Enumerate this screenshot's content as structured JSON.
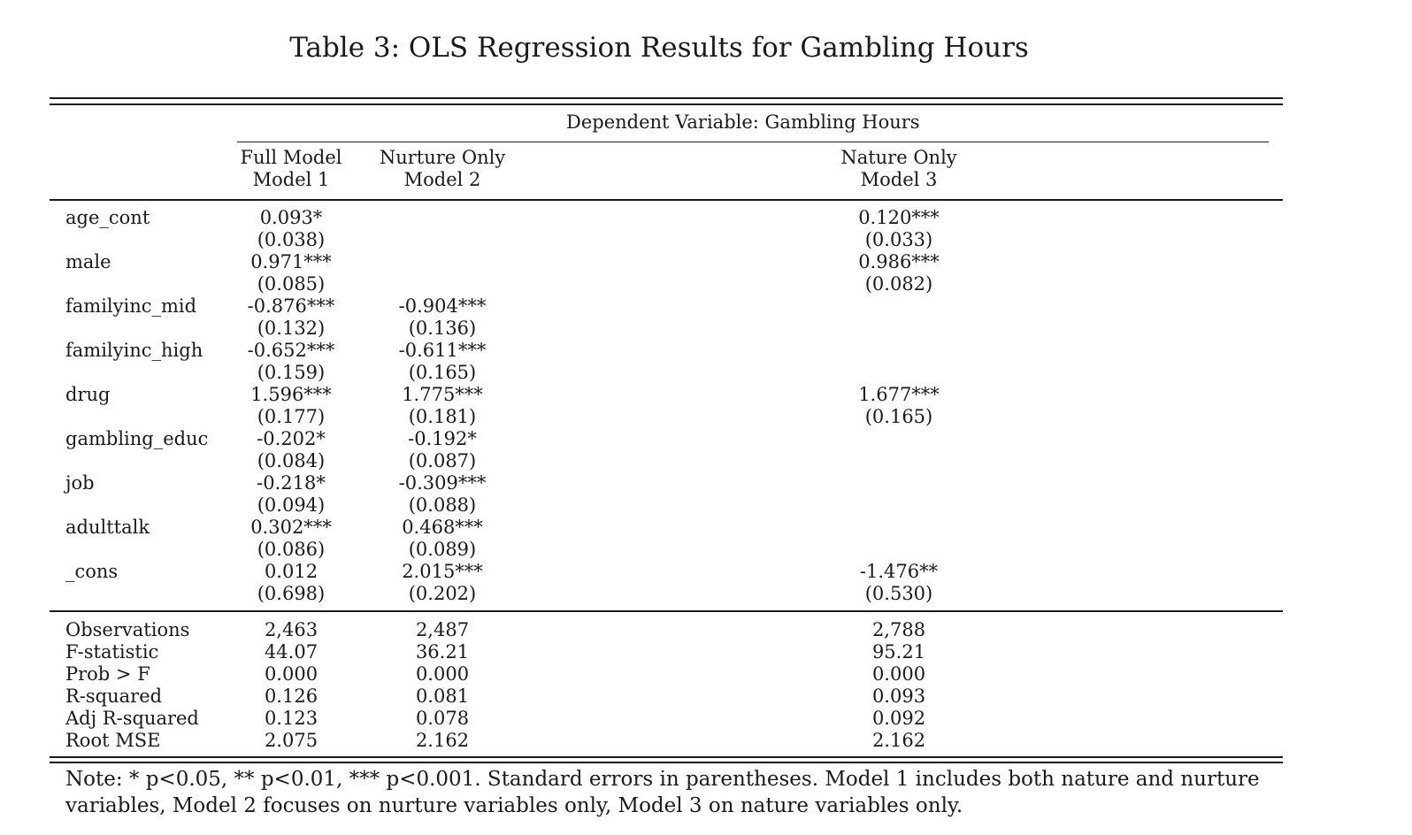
{
  "title": "Table 3: OLS Regression Results for Gambling Hours",
  "dependent_variable": "Dependent Variable: Gambling Hours",
  "models": [
    {
      "line1": "Full Model",
      "line2": "Model 1"
    },
    {
      "line1": "Nurture Only",
      "line2": "Model 2"
    },
    {
      "line1": "Nature Only",
      "line2": "Model 3"
    }
  ],
  "coefficients": [
    {
      "var": "age_cont",
      "coef": [
        "0.093*",
        "",
        "0.120***"
      ],
      "se": [
        "(0.038)",
        "",
        "(0.033)"
      ]
    },
    {
      "var": "male",
      "coef": [
        "0.971***",
        "",
        "0.986***"
      ],
      "se": [
        "(0.085)",
        "",
        "(0.082)"
      ]
    },
    {
      "var": "familyinc_mid",
      "coef": [
        "-0.876***",
        "-0.904***",
        ""
      ],
      "se": [
        "(0.132)",
        "(0.136)",
        ""
      ]
    },
    {
      "var": "familyinc_high",
      "coef": [
        "-0.652***",
        "-0.611***",
        ""
      ],
      "se": [
        "(0.159)",
        "(0.165)",
        ""
      ]
    },
    {
      "var": "drug",
      "coef": [
        "1.596***",
        "1.775***",
        "1.677***"
      ],
      "se": [
        "(0.177)",
        "(0.181)",
        "(0.165)"
      ]
    },
    {
      "var": "gambling_educ",
      "coef": [
        "-0.202*",
        "-0.192*",
        ""
      ],
      "se": [
        "(0.084)",
        "(0.087)",
        ""
      ]
    },
    {
      "var": "job",
      "coef": [
        "-0.218*",
        "-0.309***",
        ""
      ],
      "se": [
        "(0.094)",
        "(0.088)",
        ""
      ]
    },
    {
      "var": "adulttalk",
      "coef": [
        "0.302***",
        "0.468***",
        ""
      ],
      "se": [
        "(0.086)",
        "(0.089)",
        ""
      ]
    },
    {
      "var": "_cons",
      "coef": [
        "0.012",
        "2.015***",
        "-1.476**"
      ],
      "se": [
        "(0.698)",
        "(0.202)",
        "(0.530)"
      ]
    }
  ],
  "stats": [
    {
      "label": "Observations",
      "values": [
        "2,463",
        "2,487",
        "2,788"
      ]
    },
    {
      "label": "F-statistic",
      "values": [
        "44.07",
        "36.21",
        "95.21"
      ]
    },
    {
      "label": "Prob > F",
      "values": [
        "0.000",
        "0.000",
        "0.000"
      ]
    },
    {
      "label": "R-squared",
      "values": [
        "0.126",
        "0.081",
        "0.093"
      ]
    },
    {
      "label": "Adj R-squared",
      "values": [
        "0.123",
        "0.078",
        "0.092"
      ]
    },
    {
      "label": "Root MSE",
      "values": [
        "2.075",
        "2.162",
        "2.162"
      ]
    }
  ],
  "note": "Note: * p<0.05, ** p<0.01, *** p<0.001. Standard errors in parentheses. Model 1 includes both nature and nurture variables, Model 2 focuses on nurture variables only, Model 3 on nature variables only."
}
